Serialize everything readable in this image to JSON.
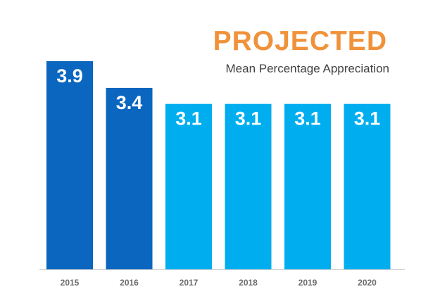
{
  "chart_data": {
    "type": "bar",
    "title": "PROJECTED",
    "subtitle": "Mean Percentage Appreciation",
    "categories": [
      "2015",
      "2016",
      "2017",
      "2018",
      "2019",
      "2020"
    ],
    "values": [
      3.9,
      3.4,
      3.1,
      3.1,
      3.1,
      3.1
    ],
    "value_labels": [
      "3.9",
      "3.4",
      "3.1",
      "3.1",
      "3.1",
      "3.1"
    ],
    "bar_colors": [
      "#0A66BE",
      "#0A66BE",
      "#00AEEF",
      "#00AEEF",
      "#00AEEF",
      "#00AEEF"
    ],
    "xlabel": "",
    "ylabel": "",
    "ylim": [
      0,
      3.9
    ],
    "grid": false,
    "legend": "none"
  },
  "colors": {
    "title": "#F0923A",
    "subtitle": "#404040",
    "axis": "#cfcfcf",
    "tick_text": "#6b6b6b"
  }
}
